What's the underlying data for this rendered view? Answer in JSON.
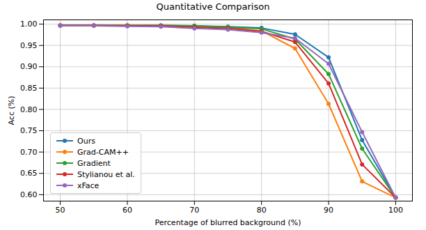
{
  "chart_data": {
    "type": "line",
    "title": "Quantitative Comparison",
    "x_label": "Percentage of blurred background (%)",
    "y_label": "Acc (%)",
    "x": [
      50,
      55,
      60,
      65,
      70,
      75,
      80,
      85,
      90,
      95,
      100
    ],
    "series": [
      {
        "name": "Ours",
        "color": "#1f77b4",
        "values": [
          0.997,
          0.997,
          0.997,
          0.997,
          0.996,
          0.994,
          0.991,
          0.976,
          0.922,
          0.728,
          0.593
        ]
      },
      {
        "name": "Grad-CAM++",
        "color": "#ff7f0e",
        "values": [
          0.997,
          0.997,
          0.997,
          0.996,
          0.994,
          0.992,
          0.984,
          0.943,
          0.813,
          0.631,
          0.593
        ]
      },
      {
        "name": "Gradient",
        "color": "#2ca02c",
        "values": [
          0.997,
          0.997,
          0.997,
          0.997,
          0.996,
          0.993,
          0.989,
          0.965,
          0.883,
          0.708,
          0.593
        ]
      },
      {
        "name": "Stylianou et al.",
        "color": "#d62728",
        "values": [
          0.997,
          0.997,
          0.996,
          0.996,
          0.993,
          0.99,
          0.983,
          0.958,
          0.861,
          0.671,
          0.593
        ]
      },
      {
        "name": "xFace",
        "color": "#9467bd",
        "values": [
          0.996,
          0.996,
          0.995,
          0.994,
          0.99,
          0.987,
          0.98,
          0.967,
          0.907,
          0.747,
          0.593
        ]
      }
    ],
    "xlim": [
      47.5,
      102.5
    ],
    "xticks": [
      50,
      60,
      70,
      80,
      90,
      100
    ],
    "ylim": [
      0.585,
      1.01
    ],
    "yticks": [
      {
        "value": 0.6,
        "label": "0.60"
      },
      {
        "value": 0.65,
        "label": "0.65"
      },
      {
        "value": 0.7,
        "label": "0.70"
      },
      {
        "value": 0.75,
        "label": "0.75"
      },
      {
        "value": 0.8,
        "label": "0.80"
      },
      {
        "value": 0.85,
        "label": "0.85"
      },
      {
        "value": 0.9,
        "label": "0.90"
      },
      {
        "value": 0.95,
        "label": "0.95"
      },
      {
        "value": 1.0,
        "label": "1.00"
      }
    ],
    "grid": true,
    "legend": "lower left",
    "marker": "circle",
    "line_style": "solid"
  }
}
